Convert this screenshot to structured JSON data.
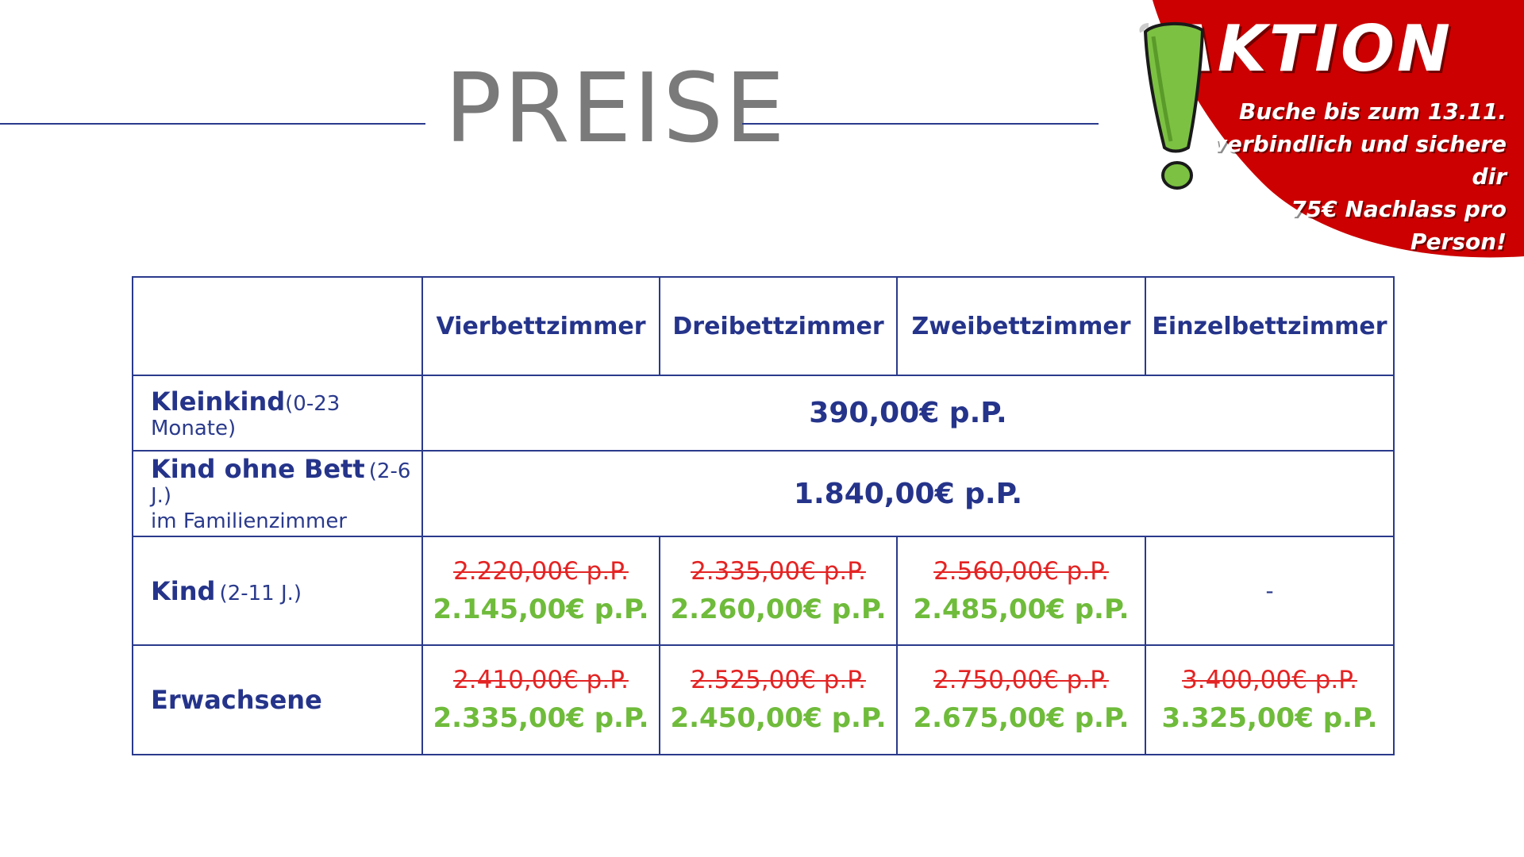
{
  "page": {
    "title": "PREISE"
  },
  "promo": {
    "title": "AKTION",
    "line1": "Buche bis zum 13.11.",
    "line2": "verbindlich und sichere dir",
    "line3": "75€ Nachlass pro Person!",
    "icon": "exclamation-icon",
    "colors": {
      "banner": "#cc0000",
      "icon_fill": "#7cc142"
    }
  },
  "table": {
    "columns": [
      "Vierbettzimmer",
      "Dreibettzimmer",
      "Zweibettzimmer",
      "Einzelbettzimmer"
    ],
    "rows": {
      "kleinkind": {
        "label": "Kleinkind",
        "sub": "(0-23 Monate)",
        "price": "390,00€ p.P."
      },
      "kind_ohne_bett": {
        "label": "Kind ohne Bett",
        "sub": "(2-6 J.)",
        "note": "im Familienzimmer",
        "price": "1.840,00€ p.P."
      },
      "kind": {
        "label": "Kind",
        "sub": "(2-11 J.)",
        "cells": [
          {
            "old": "2.220,00€ p.P.",
            "new": "2.145,00€ p.P."
          },
          {
            "old": "2.335,00€ p.P.",
            "new": "2.260,00€ p.P."
          },
          {
            "old": "2.560,00€ p.P.",
            "new": "2.485,00€ p.P."
          },
          {
            "none": "-"
          }
        ]
      },
      "erwachsene": {
        "label": "Erwachsene",
        "cells": [
          {
            "old": "2.410,00€ p.P.",
            "new": "2.335,00€ p.P."
          },
          {
            "old": "2.525,00€ p.P.",
            "new": "2.450,00€ p.P."
          },
          {
            "old": "2.750,00€ p.P.",
            "new": "2.675,00€ p.P."
          },
          {
            "old": "3.400,00€ p.P.",
            "new": "3.325,00€ p.P."
          }
        ]
      }
    },
    "colors": {
      "border": "#2a3a8c",
      "label": "#25348a",
      "old_price": "#e42323",
      "new_price": "#6fbb3b"
    }
  }
}
